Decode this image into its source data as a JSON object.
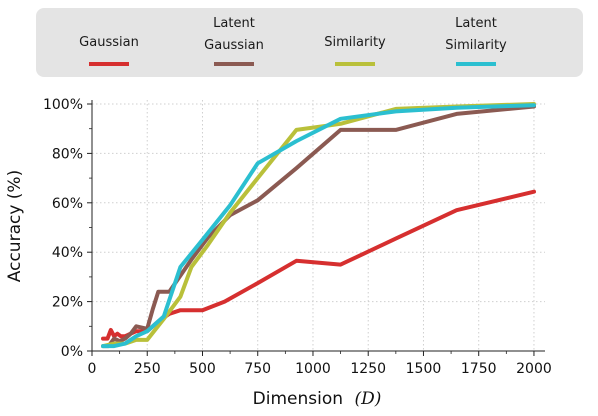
{
  "chart_data": {
    "type": "line",
    "xlabel": "Dimension",
    "xlabel_symbol": "(D)",
    "ylabel": "Accuracy  (%)",
    "xlim": [
      0,
      2050
    ],
    "ylim": [
      0,
      100
    ],
    "xticks": [
      0,
      250,
      500,
      750,
      1000,
      1250,
      1500,
      1750,
      2000
    ],
    "xtick_labels": [
      "0",
      "250",
      "500",
      "750",
      "1000",
      "1250",
      "1500",
      "1750",
      "2000"
    ],
    "yticks": [
      0,
      20,
      40,
      60,
      80,
      100
    ],
    "ytick_labels": [
      "0%",
      "20%",
      "40%",
      "60%",
      "80%",
      "100%"
    ],
    "grid": true,
    "legend_position": "top",
    "series": [
      {
        "name": "Gaussian",
        "color": "#d62f2f",
        "x": [
          50,
          70,
          85,
          100,
          115,
          130,
          150,
          200,
          250,
          300,
          350,
          400,
          450,
          500,
          600,
          750,
          925,
          1125,
          1375,
          1650,
          2000
        ],
        "y": [
          5,
          5,
          8.5,
          6,
          7,
          6,
          6,
          8,
          8,
          12,
          15,
          16.5,
          16.5,
          16.5,
          20,
          27.5,
          36.5,
          35,
          45.5,
          57,
          64.5
        ]
      },
      {
        "name": "Latent Gaussian",
        "color": "#8b5a52",
        "x": [
          50,
          75,
          100,
          125,
          150,
          175,
          200,
          250,
          275,
          300,
          350,
          450,
          525,
          625,
          750,
          925,
          1125,
          1375,
          1650,
          2000
        ],
        "y": [
          2,
          2,
          5,
          4,
          5,
          7,
          10,
          9,
          17,
          24,
          24,
          37,
          46,
          55,
          61,
          74,
          89.5,
          89.5,
          96,
          99
        ]
      },
      {
        "name": "Similarity",
        "color": "#b9c03a",
        "x": [
          50,
          100,
          150,
          200,
          250,
          325,
          400,
          450,
          525,
          625,
          750,
          925,
          1125,
          1375,
          1650,
          2000
        ],
        "y": [
          2,
          3,
          3,
          4.5,
          4.5,
          13,
          22,
          34,
          43,
          56,
          70,
          89.5,
          92,
          98,
          99,
          100
        ]
      },
      {
        "name": "Latent Similarity",
        "color": "#2bbfd0",
        "x": [
          50,
          100,
          150,
          200,
          250,
          325,
          400,
          500,
          625,
          750,
          925,
          1125,
          1375,
          1650,
          2000
        ],
        "y": [
          2,
          2,
          3,
          6,
          8,
          14,
          34,
          45,
          59,
          76,
          85,
          94,
          97,
          98.5,
          99.5
        ]
      }
    ]
  }
}
